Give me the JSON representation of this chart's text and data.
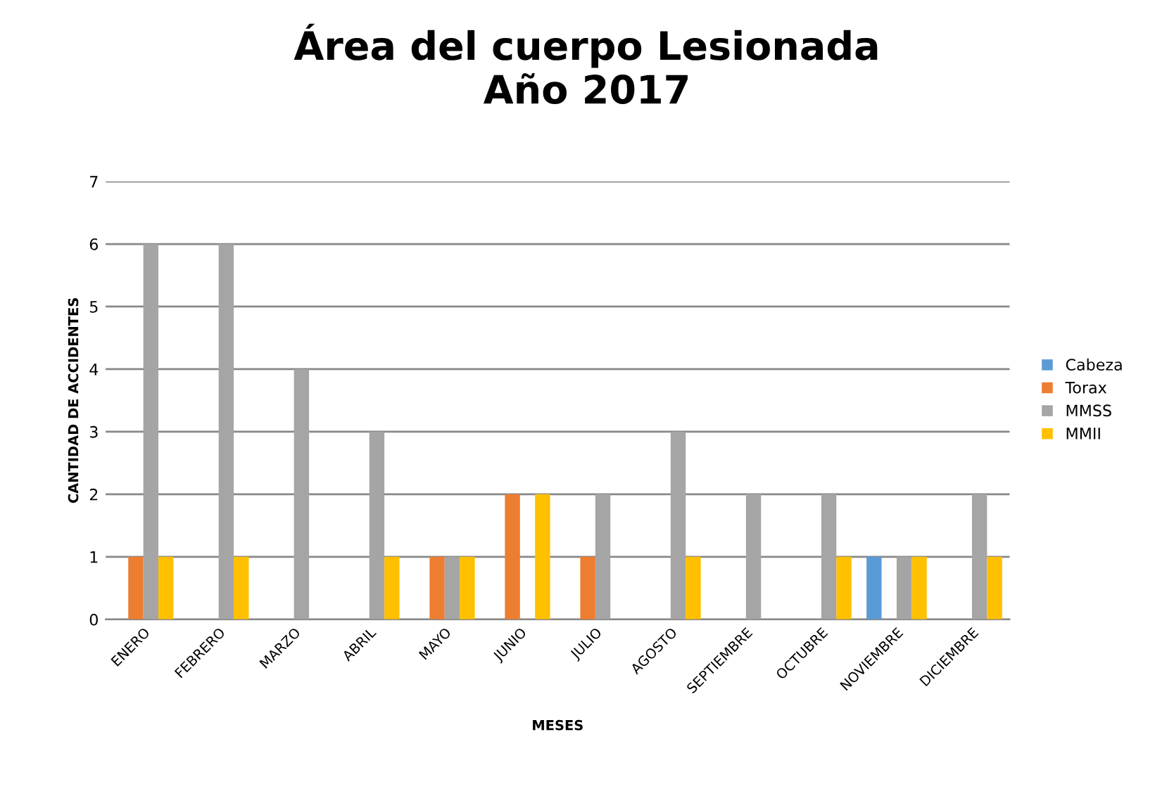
{
  "chart_data": {
    "type": "bar",
    "title": "Área del cuerpo Lesionada\nAño 2017",
    "xlabel": "MESES",
    "ylabel": "CANTIDAD DE ACCIDENTES",
    "categories": [
      "ENERO",
      "FEBRERO",
      "MARZO",
      "ABRIL",
      "MAYO",
      "JUNIO",
      "JULIO",
      "AGOSTO",
      "SEPTIEMBRE",
      "OCTUBRE",
      "NOVIEMBRE",
      "DICIEMBRE"
    ],
    "series": [
      {
        "name": "Cabeza",
        "color": "#5b9bd5",
        "values": [
          0,
          0,
          0,
          0,
          0,
          0,
          0,
          0,
          0,
          0,
          1,
          0
        ]
      },
      {
        "name": "Torax",
        "color": "#ed7d31",
        "values": [
          1,
          0,
          0,
          0,
          1,
          2,
          1,
          0,
          0,
          0,
          0,
          0
        ]
      },
      {
        "name": "MMSS",
        "color": "#a5a5a5",
        "values": [
          6,
          6,
          4,
          3,
          1,
          0,
          2,
          3,
          2,
          2,
          1,
          2
        ]
      },
      {
        "name": "MMII",
        "color": "#ffc000",
        "values": [
          1,
          1,
          0,
          1,
          1,
          2,
          0,
          1,
          0,
          1,
          1,
          1
        ]
      }
    ],
    "ylim": [
      0,
      7
    ],
    "yticks": [
      0,
      1,
      2,
      3,
      4,
      5,
      6,
      7
    ],
    "grid": "y",
    "legend": "right"
  }
}
